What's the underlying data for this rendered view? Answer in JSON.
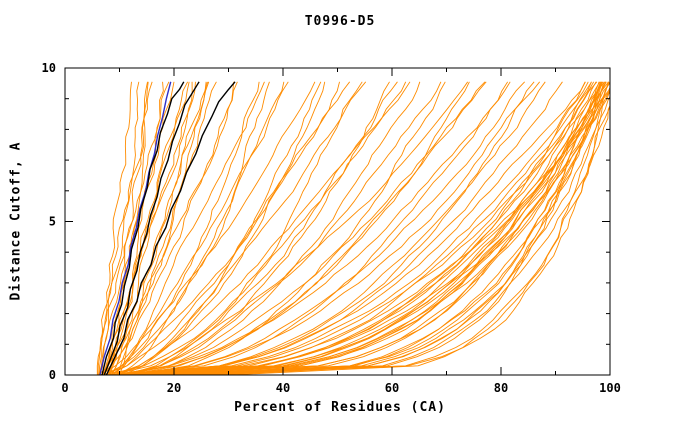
{
  "chart_data": {
    "type": "line",
    "title": "T0996-D5",
    "xlabel": "Percent of Residues (CA)",
    "ylabel": "Distance Cutoff, A",
    "xlim": [
      0,
      100
    ],
    "ylim": [
      0,
      10
    ],
    "x_major_ticks": [
      0,
      20,
      40,
      60,
      80,
      100
    ],
    "x_minor_ticks": [
      10,
      30,
      50,
      70,
      90
    ],
    "y_major_ticks": [
      0,
      5,
      10
    ],
    "y_minor_ticks": [
      1,
      2,
      3,
      4,
      6,
      7,
      8,
      9
    ],
    "grid": false,
    "legend": "none",
    "colors": {
      "model_curves": "#ff8c00",
      "highlight_curves": "#000000",
      "reference_curve": "#3030c8",
      "axes": "#000000"
    },
    "model_curves_x0_xtop_exponent": [
      [
        5.5,
        13,
        1.1
      ],
      [
        6,
        14,
        1.0
      ],
      [
        6.5,
        15,
        0.95
      ],
      [
        7,
        16,
        1.05
      ],
      [
        6,
        17,
        0.9
      ],
      [
        7.5,
        18,
        1.0
      ],
      [
        8,
        19,
        0.85
      ],
      [
        6.5,
        20,
        1.1
      ],
      [
        7,
        21,
        0.95
      ],
      [
        8.5,
        22,
        0.9
      ],
      [
        9,
        23,
        1.0
      ],
      [
        7.5,
        24,
        0.85
      ],
      [
        8,
        25,
        0.95
      ],
      [
        9.5,
        26,
        0.9
      ],
      [
        10,
        27,
        1.0
      ],
      [
        8.5,
        28,
        0.8
      ],
      [
        6,
        30,
        0.75
      ],
      [
        7,
        32,
        0.8
      ],
      [
        8,
        34,
        0.7
      ],
      [
        9,
        36,
        0.85
      ],
      [
        7.5,
        38,
        0.65
      ],
      [
        8.5,
        40,
        0.75
      ],
      [
        10,
        42,
        0.7
      ],
      [
        6.5,
        44,
        0.8
      ],
      [
        9,
        46,
        0.6
      ],
      [
        10.5,
        48,
        0.7
      ],
      [
        7,
        50,
        0.65
      ],
      [
        8,
        52,
        0.75
      ],
      [
        11,
        54,
        0.6
      ],
      [
        9.5,
        56,
        0.7
      ],
      [
        10,
        58,
        0.55
      ],
      [
        12,
        60,
        0.65
      ],
      [
        8,
        62,
        0.6
      ],
      [
        9,
        64,
        0.7
      ],
      [
        11,
        66,
        0.55
      ],
      [
        10,
        68,
        0.6
      ],
      [
        12.5,
        70,
        0.5
      ],
      [
        9,
        72,
        0.65
      ],
      [
        11,
        74,
        0.55
      ],
      [
        10,
        76,
        0.6
      ],
      [
        8,
        78,
        0.5
      ],
      [
        9,
        80,
        0.55
      ],
      [
        10,
        82,
        0.45
      ],
      [
        11,
        84,
        0.5
      ],
      [
        9.5,
        86,
        0.4
      ],
      [
        10.5,
        88,
        0.5
      ],
      [
        12,
        90,
        0.45
      ],
      [
        8.5,
        92,
        0.4
      ],
      [
        11,
        94,
        0.45
      ],
      [
        13,
        96,
        0.4
      ],
      [
        9,
        98,
        0.35
      ],
      [
        10,
        100,
        0.4
      ],
      [
        12,
        100,
        0.35
      ],
      [
        14,
        100,
        0.45
      ],
      [
        11,
        98,
        0.3
      ],
      [
        13,
        99,
        0.38
      ],
      [
        15,
        100,
        0.33
      ],
      [
        10,
        97,
        0.42
      ],
      [
        12,
        95,
        0.36
      ],
      [
        14,
        98,
        0.3
      ],
      [
        16,
        100,
        0.35
      ],
      [
        11,
        96,
        0.28
      ],
      [
        13,
        100,
        0.32
      ],
      [
        15,
        99,
        0.4
      ],
      [
        17,
        100,
        0.3
      ],
      [
        12,
        98,
        0.26
      ],
      [
        14,
        96,
        0.34
      ],
      [
        18,
        100,
        0.38
      ],
      [
        20,
        100,
        0.3
      ],
      [
        22,
        100,
        0.25
      ],
      [
        25,
        100,
        0.28
      ],
      [
        18,
        99,
        0.22
      ],
      [
        21,
        98,
        0.26
      ],
      [
        24,
        100,
        0.2
      ],
      [
        28,
        100,
        0.24
      ],
      [
        19,
        100,
        0.18
      ],
      [
        23,
        99,
        0.22
      ],
      [
        26,
        100,
        0.26
      ],
      [
        30,
        100,
        0.2
      ],
      [
        16,
        100,
        0.24
      ]
    ],
    "highlight_curves_points": [
      [
        [
          6.8,
          0
        ],
        [
          7.6,
          0.6
        ],
        [
          8.9,
          1.2
        ],
        [
          9.2,
          1.7
        ],
        [
          10.4,
          2.3
        ],
        [
          10.9,
          2.9
        ],
        [
          11.8,
          3.5
        ],
        [
          12.2,
          4.1
        ],
        [
          13.4,
          4.8
        ],
        [
          13.9,
          5.4
        ],
        [
          15.1,
          6.1
        ],
        [
          15.6,
          6.7
        ],
        [
          16.9,
          7.3
        ],
        [
          17.5,
          7.9
        ],
        [
          18.8,
          8.5
        ],
        [
          19.6,
          9.0
        ],
        [
          21.0,
          9.3
        ],
        [
          21.8,
          9.55
        ]
      ],
      [
        [
          7.2,
          0
        ],
        [
          8.3,
          0.5
        ],
        [
          9.6,
          1.1
        ],
        [
          10.1,
          1.6
        ],
        [
          11.5,
          2.2
        ],
        [
          12.0,
          2.8
        ],
        [
          13.2,
          3.4
        ],
        [
          13.8,
          4.0
        ],
        [
          15.0,
          4.6
        ],
        [
          15.7,
          5.2
        ],
        [
          16.9,
          5.8
        ],
        [
          17.6,
          6.4
        ],
        [
          18.9,
          7.0
        ],
        [
          19.7,
          7.6
        ],
        [
          21.0,
          8.2
        ],
        [
          22.0,
          8.8
        ],
        [
          23.4,
          9.2
        ],
        [
          24.6,
          9.55
        ]
      ],
      [
        [
          7.6,
          0
        ],
        [
          9.2,
          0.6
        ],
        [
          10.8,
          1.2
        ],
        [
          11.5,
          1.8
        ],
        [
          13.2,
          2.4
        ],
        [
          14.0,
          3.0
        ],
        [
          15.8,
          3.6
        ],
        [
          16.7,
          4.2
        ],
        [
          18.5,
          4.8
        ],
        [
          19.5,
          5.4
        ],
        [
          21.2,
          6.0
        ],
        [
          22.3,
          6.6
        ],
        [
          24.0,
          7.2
        ],
        [
          25.2,
          7.8
        ],
        [
          26.9,
          8.4
        ],
        [
          28.2,
          8.9
        ],
        [
          30.0,
          9.3
        ],
        [
          31.2,
          9.55
        ]
      ]
    ],
    "reference_curve_points": [
      [
        6.4,
        0
      ],
      [
        7.2,
        0.6
      ],
      [
        8.3,
        1.2
      ],
      [
        8.8,
        1.8
      ],
      [
        9.9,
        2.4
      ],
      [
        10.5,
        3.0
      ],
      [
        11.6,
        3.6
      ],
      [
        12.1,
        4.2
      ],
      [
        13.1,
        4.8
      ],
      [
        13.7,
        5.4
      ],
      [
        14.8,
        6.0
      ],
      [
        15.4,
        6.6
      ],
      [
        16.4,
        7.2
      ],
      [
        17.0,
        7.8
      ],
      [
        17.9,
        8.4
      ],
      [
        18.6,
        9.0
      ],
      [
        19.4,
        9.55
      ]
    ]
  }
}
